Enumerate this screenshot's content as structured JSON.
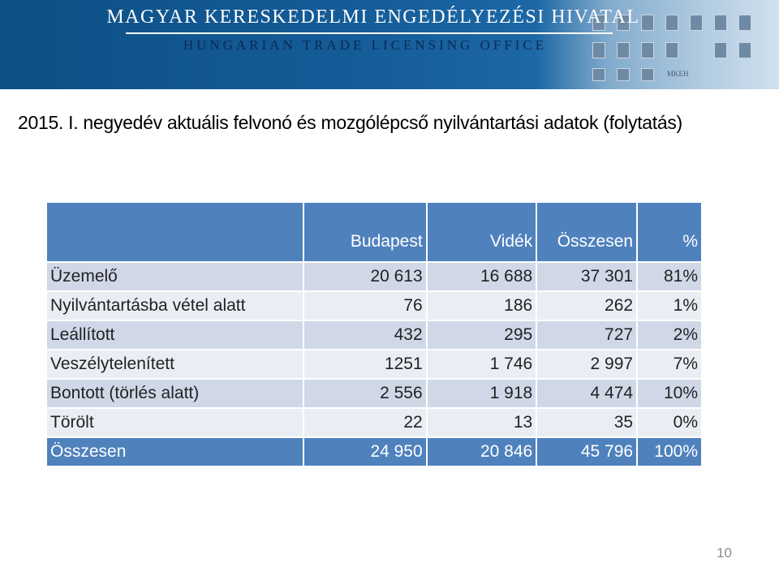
{
  "banner": {
    "title": "MAGYAR KERESKEDELMI ENGEDÉLYEZÉSI HIVATAL",
    "subtitle": "HUNGARIAN TRADE LICENSING OFFICE",
    "building_sign": "MKEH"
  },
  "heading": "2015. I. negyedév  aktuális felvonó és mozgólépcső nyilvántartási adatok (folytatás)",
  "table": {
    "columns": [
      "",
      "Budapest",
      "Vidék",
      "Összesen",
      "%"
    ],
    "rows": [
      [
        "Üzemelő",
        "20 613",
        "16 688",
        "37 301",
        "81%"
      ],
      [
        "Nyilvántartásba vétel alatt",
        "76",
        "186",
        "262",
        "1%"
      ],
      [
        "Leállított",
        "432",
        "295",
        "727",
        "2%"
      ],
      [
        "Veszélytelenített",
        "1251",
        "1 746",
        "2 997",
        "7%"
      ],
      [
        "Bontott (törlés alatt)",
        "2 556",
        "1 918",
        "4 474",
        "10%"
      ],
      [
        "Törölt",
        "22",
        "13",
        "35",
        "0%"
      ]
    ],
    "total": [
      "Összesen",
      "24 950",
      "20 846",
      "45 796",
      "100%"
    ]
  },
  "page_number": "10",
  "colors": {
    "header_blue": "#4f81bd",
    "row_dark": "#d0d8e8",
    "row_light": "#e9edf4",
    "banner_blue": "#145c98"
  }
}
